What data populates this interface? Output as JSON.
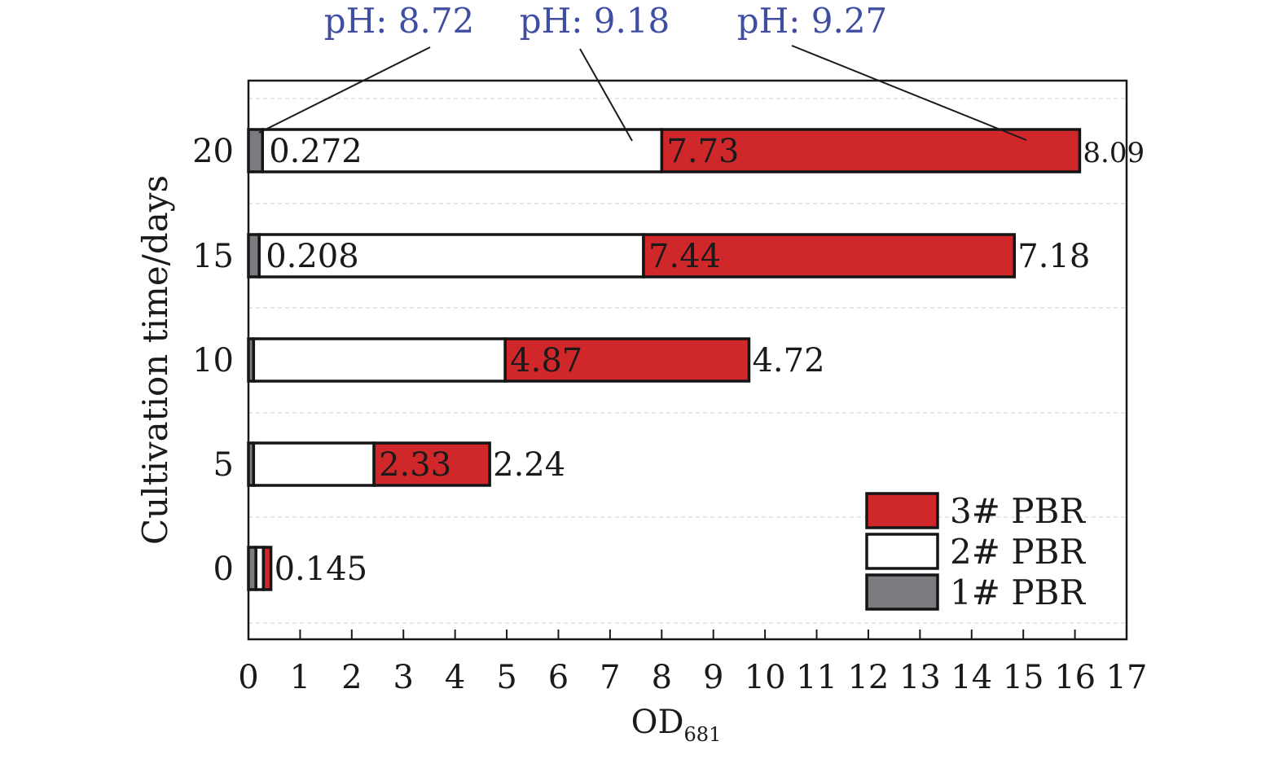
{
  "chart_data": {
    "type": "bar",
    "orientation": "horizontal",
    "stacked": true,
    "title": "",
    "xlabel": "OD",
    "xlabel_subscript": "681",
    "ylabel": "Cultivation time/days",
    "xlim": [
      0,
      17
    ],
    "xticks": [
      "0",
      "1",
      "2",
      "3",
      "4",
      "5",
      "6",
      "7",
      "8",
      "9",
      "10",
      "11",
      "12",
      "13",
      "14",
      "15",
      "16",
      "17"
    ],
    "categories": [
      "0",
      "5",
      "10",
      "15",
      "20"
    ],
    "grid": "horizontal dashed",
    "legend_position": "bottom-right",
    "series": [
      {
        "name": "1# PBR",
        "color": "#7a7c80",
        "values": [
          0.145,
          0.1,
          0.1,
          0.208,
          0.272
        ],
        "labels": [
          "",
          "",
          "",
          "0.208",
          "0.272"
        ]
      },
      {
        "name": "2# PBR",
        "color": "#ffffff",
        "values": [
          0.145,
          2.33,
          4.87,
          7.44,
          7.73
        ],
        "labels": [
          "",
          "2.33",
          "4.87",
          "7.44",
          "7.73"
        ]
      },
      {
        "name": "3# PBR",
        "color": "#d0282a",
        "values": [
          0.145,
          2.24,
          4.72,
          7.18,
          8.09
        ],
        "labels": [
          "0.145",
          "2.24",
          "4.72",
          "7.18",
          "8.09"
        ]
      }
    ],
    "annotations": [
      {
        "text": "pH: 8.72",
        "series": "1# PBR",
        "category": "20"
      },
      {
        "text": "pH: 9.18",
        "series": "2# PBR",
        "category": "20"
      },
      {
        "text": "pH: 9.27",
        "series": "3# PBR",
        "category": "20"
      }
    ],
    "annotation_color": "#3f4ea0"
  }
}
